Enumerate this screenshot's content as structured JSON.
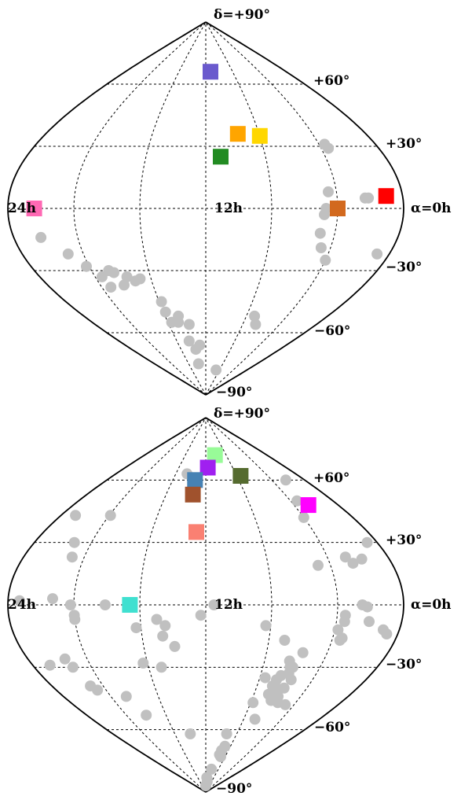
{
  "chart_data": [
    {
      "type": "scatter",
      "projection": "sinusoidal",
      "axes_labels": {
        "north_pole": "δ=+90°",
        "south_pole": "−90°",
        "dec_pos_60": "+60°",
        "dec_pos_30": "+30°",
        "dec_neg_30": "−30°",
        "dec_neg_60": "−60°",
        "ra_left": "24h",
        "ra_center": "12h",
        "ra_right": "α=0h"
      },
      "grid": true,
      "ra_range_h": [
        24,
        0
      ],
      "dec_range_deg": [
        -90,
        90
      ],
      "gray_points": [
        [
          22.3,
          -14
        ],
        [
          21.0,
          -22
        ],
        [
          20.2,
          -28
        ],
        [
          18.8,
          -30
        ],
        [
          19.5,
          -33
        ],
        [
          19.3,
          -38
        ],
        [
          18.5,
          -31
        ],
        [
          17.7,
          -33
        ],
        [
          18.2,
          -37
        ],
        [
          16.8,
          -34
        ],
        [
          17.2,
          -35
        ],
        [
          15.8,
          -45
        ],
        [
          15.8,
          -50
        ],
        [
          15.6,
          -55
        ],
        [
          14.7,
          -52
        ],
        [
          14.9,
          -55
        ],
        [
          13.8,
          -56
        ],
        [
          14.3,
          -64
        ],
        [
          13.6,
          -68
        ],
        [
          12.9,
          -66
        ],
        [
          13.7,
          -75
        ],
        [
          9.0,
          -78
        ],
        [
          7.2,
          -52
        ],
        [
          6.6,
          -56
        ],
        [
          4.9,
          -12
        ],
        [
          4.8,
          -3
        ],
        [
          4.7,
          0
        ],
        [
          4.5,
          8
        ],
        [
          4.1,
          -1
        ],
        [
          4.0,
          -25
        ],
        [
          4.6,
          -19
        ],
        [
          3.6,
          31
        ],
        [
          3.5,
          29
        ],
        [
          2.3,
          5
        ],
        [
          2.1,
          5
        ],
        [
          0.8,
          -22
        ]
      ],
      "colored_squares": [
        {
          "ra": 11.3,
          "dec": 66,
          "color": "#6a5acd"
        },
        {
          "ra": 9.6,
          "dec": 36,
          "color": "#ffa500"
        },
        {
          "ra": 8.0,
          "dec": 35,
          "color": "#ffd700"
        },
        {
          "ra": 11.0,
          "dec": 25,
          "color": "#228b22"
        },
        {
          "ra": 4.0,
          "dec": 0,
          "color": "#d2691e"
        },
        {
          "ra": 1.0,
          "dec": 6,
          "color": "#ff0000"
        },
        {
          "ra": 22.4,
          "dec": 0,
          "color": "#ff69b4"
        }
      ]
    },
    {
      "type": "scatter",
      "projection": "sinusoidal",
      "axes_labels": {
        "north_pole": "δ=+90°",
        "south_pole": "−90°",
        "dec_pos_60": "+60°",
        "dec_pos_30": "+30°",
        "dec_neg_30": "−30°",
        "dec_neg_60": "−60°",
        "ra_left": "24h",
        "ra_center": "12h",
        "ra_right": "α=0h"
      },
      "grid": true,
      "ra_range_h": [
        24,
        0
      ],
      "dec_range_deg": [
        -90,
        90
      ],
      "gray_points": [
        [
          14.5,
          63
        ],
        [
          13.2,
          61
        ],
        [
          2.3,
          60
        ],
        [
          3.4,
          50
        ],
        [
          4.0,
          42
        ],
        [
          19.9,
          43
        ],
        [
          22.8,
          43
        ],
        [
          0.7,
          30
        ],
        [
          21.2,
          30
        ],
        [
          20.8,
          23
        ],
        [
          2.8,
          23
        ],
        [
          2.5,
          20
        ],
        [
          1.8,
          22
        ],
        [
          4.8,
          19
        ],
        [
          23.3,
          2
        ],
        [
          21.3,
          3
        ],
        [
          20.2,
          0
        ],
        [
          18.1,
          0
        ],
        [
          20.0,
          -5
        ],
        [
          20.0,
          -7
        ],
        [
          2.5,
          0
        ],
        [
          2.2,
          -1
        ],
        [
          3.5,
          -5
        ],
        [
          3.5,
          -8
        ],
        [
          2.0,
          -8
        ],
        [
          3.8,
          -12
        ],
        [
          3.4,
          -16
        ],
        [
          3.5,
          -17
        ],
        [
          1.0,
          -12
        ],
        [
          0.7,
          -14
        ],
        [
          15.0,
          -7
        ],
        [
          14.5,
          -10
        ],
        [
          16.3,
          -11
        ],
        [
          14.0,
          -20
        ],
        [
          15.1,
          -30
        ],
        [
          16.3,
          -28
        ],
        [
          12.3,
          -5
        ],
        [
          14.7,
          -15
        ],
        [
          11.5,
          0
        ],
        [
          8.3,
          -10
        ],
        [
          7.0,
          -17
        ],
        [
          6.3,
          -27
        ],
        [
          5.6,
          -23
        ],
        [
          6.1,
          -30
        ],
        [
          7.6,
          -35
        ],
        [
          6.7,
          -36
        ],
        [
          6.5,
          -34
        ],
        [
          5.9,
          -30
        ],
        [
          6.4,
          -40
        ],
        [
          6.8,
          -39
        ],
        [
          6.2,
          -42
        ],
        [
          5.8,
          -40
        ],
        [
          5.6,
          -36
        ],
        [
          6.8,
          -43
        ],
        [
          6.3,
          -46
        ],
        [
          5.9,
          -44
        ],
        [
          5.6,
          -47
        ],
        [
          6.0,
          -33
        ],
        [
          7.8,
          -47
        ],
        [
          6.8,
          -55
        ],
        [
          4.8,
          -48
        ],
        [
          9.3,
          -62
        ],
        [
          9.2,
          -70
        ],
        [
          9.3,
          -72
        ],
        [
          8.9,
          -68
        ],
        [
          8.9,
          -73
        ],
        [
          10.2,
          -79
        ],
        [
          14.0,
          -62
        ],
        [
          21.3,
          -30
        ],
        [
          21.0,
          -39
        ],
        [
          20.7,
          -41
        ],
        [
          18.7,
          -44
        ],
        [
          18.0,
          -53
        ],
        [
          22.8,
          -29
        ],
        [
          21.5,
          -26
        ],
        [
          12.0,
          -87
        ],
        [
          11.0,
          -85
        ],
        [
          11.5,
          -83
        ]
      ],
      "colored_squares": [
        {
          "ra": 10.2,
          "dec": 72,
          "color": "#98fb98"
        },
        {
          "ra": 11.7,
          "dec": 66,
          "color": "#a020f0"
        },
        {
          "ra": 7.5,
          "dec": 62,
          "color": "#556b2f"
        },
        {
          "ra": 13.3,
          "dec": 60,
          "color": "#4682b4"
        },
        {
          "ra": 13.3,
          "dec": 53,
          "color": "#a0522d"
        },
        {
          "ra": 12.7,
          "dec": 35,
          "color": "#fa8072"
        },
        {
          "ra": 2.7,
          "dec": 48,
          "color": "#ff00ff"
        },
        {
          "ra": 16.6,
          "dec": 0,
          "color": "#40e0d0"
        }
      ]
    }
  ]
}
